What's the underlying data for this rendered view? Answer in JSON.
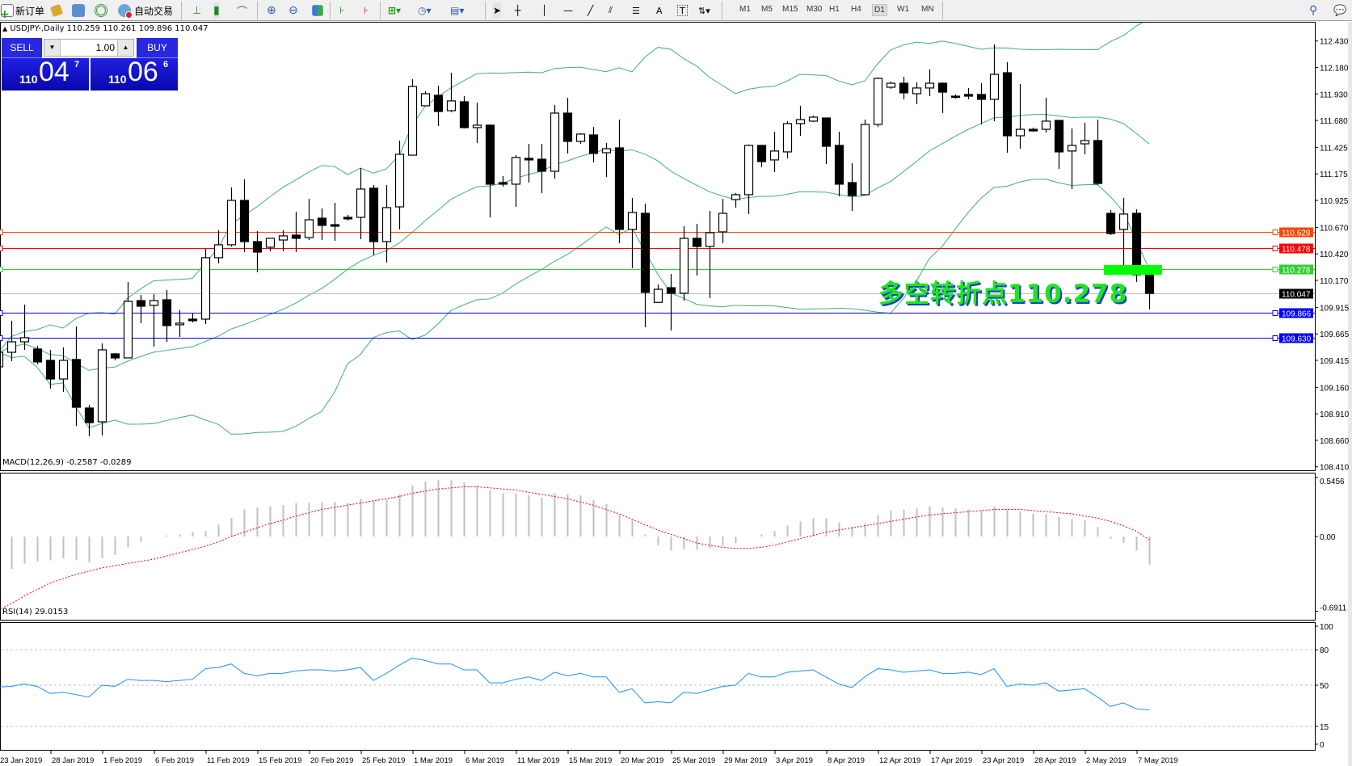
{
  "toolbar": {
    "new_order": "新订单",
    "auto_trading": "自动交易",
    "timeframes": [
      "M1",
      "M5",
      "M15",
      "M30",
      "H1",
      "H4",
      "D1",
      "W1",
      "MN"
    ],
    "active_timeframe": "D1"
  },
  "chart_header": "USDJPY-,Daily  110.259 110.261 109.896 110.047",
  "trade_panel": {
    "sell_label": "SELL",
    "buy_label": "BUY",
    "lot": "1.00",
    "sell_big": "110",
    "sell_pips": "04",
    "sell_frac": "7",
    "buy_big": "110",
    "buy_pips": "06",
    "buy_frac": "6",
    "panel_color": "#1a1ad8"
  },
  "annotation": "多空转折点110.278",
  "price_axis": [
    "112.430",
    "112.180",
    "111.930",
    "111.680",
    "111.425",
    "111.175",
    "110.925",
    "110.670",
    "110.420",
    "110.170",
    "109.915",
    "109.665",
    "109.415",
    "109.160",
    "108.910",
    "108.660",
    "108.410"
  ],
  "levels": [
    {
      "price": 110.629,
      "label": "110.629",
      "color": "#ff4500"
    },
    {
      "price": 110.478,
      "label": "110.478",
      "color": "#ff0000"
    },
    {
      "price": 110.278,
      "label": "110.278",
      "color": "#32cd32"
    },
    {
      "price": 110.047,
      "label": "110.047",
      "color": "#c0c0c0",
      "label_bg": "#000000"
    },
    {
      "price": 109.866,
      "label": "109.866",
      "color": "#0000ff"
    },
    {
      "price": 109.63,
      "label": "109.630",
      "color": "#0000ff"
    }
  ],
  "macd": {
    "label": "MACD(12,26,9) -0.2587 -0.0289",
    "axis": [
      "0.5456",
      "0.00",
      "-0.6911"
    ]
  },
  "rsi": {
    "label": "RSI(14) 29.0153",
    "axis": [
      "100",
      "80",
      "50",
      "15",
      "0"
    ]
  },
  "dates": [
    "23 Jan 2019",
    "28 Jan 2019",
    "1 Feb 2019",
    "6 Feb 2019",
    "11 Feb 2019",
    "15 Feb 2019",
    "20 Feb 2019",
    "25 Feb 2019",
    "1 Mar 2019",
    "6 Mar 2019",
    "11 Mar 2019",
    "15 Mar 2019",
    "20 Mar 2019",
    "25 Mar 2019",
    "29 Mar 2019",
    "3 Apr 2019",
    "8 Apr 2019",
    "12 Apr 2019",
    "17 Apr 2019",
    "23 Apr 2019",
    "28 Apr 2019",
    "2 May 2019",
    "7 May 2019"
  ],
  "chart_data": {
    "type": "candlestick",
    "symbol": "USDJPY-",
    "timeframe": "Daily",
    "ylim": [
      108.41,
      112.43
    ],
    "bollinger_color": "#3cb371",
    "ohlc": [
      [
        109.354,
        109.537,
        109.308,
        109.491
      ],
      [
        109.491,
        109.789,
        109.407,
        109.59
      ],
      [
        109.59,
        109.941,
        109.514,
        109.629
      ],
      [
        109.522,
        109.552,
        109.377,
        109.4
      ],
      [
        109.415,
        109.514,
        109.148,
        109.239
      ],
      [
        109.239,
        109.537,
        109.117,
        109.415
      ],
      [
        109.423,
        109.735,
        108.797,
        108.972
      ],
      [
        108.965,
        108.995,
        108.698,
        108.827
      ],
      [
        108.835,
        109.575,
        108.706,
        109.514
      ],
      [
        109.476,
        109.484,
        109.415,
        109.438
      ],
      [
        109.438,
        110.155,
        109.438,
        109.972
      ],
      [
        109.979,
        110.033,
        109.766,
        109.926
      ],
      [
        109.934,
        110.04,
        109.545,
        109.979
      ],
      [
        109.987,
        110.079,
        109.59,
        109.743
      ],
      [
        109.751,
        109.888,
        109.636,
        109.766
      ],
      [
        109.804,
        109.857,
        109.773,
        109.789
      ],
      [
        109.804,
        110.468,
        109.758,
        110.384
      ],
      [
        110.384,
        110.643,
        110.33,
        110.506
      ],
      [
        110.506,
        111.047,
        110.49,
        110.925
      ],
      [
        110.925,
        111.124,
        110.437,
        110.536
      ],
      [
        110.536,
        110.635,
        110.246,
        110.437
      ],
      [
        110.483,
        110.567,
        110.445,
        110.567
      ],
      [
        110.551,
        110.643,
        110.445,
        110.59
      ],
      [
        110.597,
        110.818,
        110.437,
        110.567
      ],
      [
        110.574,
        110.94,
        110.551,
        110.742
      ],
      [
        110.757,
        110.849,
        110.551,
        110.689
      ],
      [
        110.696,
        110.902,
        110.544,
        110.681
      ],
      [
        110.765,
        110.788,
        110.735,
        110.75
      ],
      [
        110.765,
        111.23,
        110.559,
        111.032
      ],
      [
        111.04,
        111.07,
        110.407,
        110.536
      ],
      [
        110.536,
        111.07,
        110.338,
        110.857
      ],
      [
        110.864,
        111.49,
        110.651,
        111.36
      ],
      [
        111.352,
        112.069,
        111.352,
        112.001
      ],
      [
        111.818,
        111.955,
        111.818,
        111.932
      ],
      [
        111.917,
        112.008,
        111.627,
        111.764
      ],
      [
        111.772,
        112.13,
        111.757,
        111.864
      ],
      [
        111.856,
        111.909,
        111.604,
        111.612
      ],
      [
        111.612,
        111.848,
        111.467,
        111.635
      ],
      [
        111.635,
        111.642,
        110.765,
        111.078
      ],
      [
        111.093,
        111.154,
        111.055,
        111.078
      ],
      [
        111.078,
        111.352,
        110.864,
        111.33
      ],
      [
        111.322,
        111.459,
        111.093,
        111.307
      ],
      [
        111.314,
        111.459,
        110.994,
        111.2
      ],
      [
        111.2,
        111.825,
        111.131,
        111.749
      ],
      [
        111.749,
        111.894,
        111.368,
        111.482
      ],
      [
        111.482,
        111.558,
        111.459,
        111.551
      ],
      [
        111.543,
        111.619,
        111.284,
        111.368
      ],
      [
        111.375,
        111.467,
        111.146,
        111.413
      ],
      [
        111.421,
        111.688,
        110.521,
        110.651
      ],
      [
        110.651,
        110.948,
        110.284,
        110.811
      ],
      [
        110.803,
        110.895,
        109.728,
        110.056
      ],
      [
        109.962,
        110.132,
        109.962,
        110.086
      ],
      [
        110.101,
        110.231,
        109.697,
        110.048
      ],
      [
        110.048,
        110.681,
        109.979,
        110.567
      ],
      [
        110.567,
        110.704,
        110.216,
        110.49
      ],
      [
        110.49,
        110.826,
        110.002,
        110.62
      ],
      [
        110.628,
        110.94,
        110.521,
        110.803
      ],
      [
        110.933,
        110.994,
        110.857,
        110.979
      ],
      [
        110.979,
        111.452,
        110.796,
        111.444
      ],
      [
        111.444,
        111.444,
        111.238,
        111.291
      ],
      [
        111.307,
        111.574,
        111.192,
        111.391
      ],
      [
        111.383,
        111.673,
        111.322,
        111.65
      ],
      [
        111.65,
        111.818,
        111.535,
        111.688
      ],
      [
        111.673,
        111.726,
        111.665,
        111.711
      ],
      [
        111.703,
        111.703,
        111.268,
        111.436
      ],
      [
        111.444,
        111.574,
        110.963,
        111.078
      ],
      [
        111.093,
        111.276,
        110.826,
        110.971
      ],
      [
        110.979,
        111.688,
        110.979,
        111.642
      ],
      [
        111.642,
        112.085,
        111.619,
        112.077
      ],
      [
        111.993,
        112.047,
        111.978,
        112.031
      ],
      [
        112.031,
        112.092,
        111.879,
        111.94
      ],
      [
        111.932,
        112.039,
        111.833,
        111.986
      ],
      [
        111.986,
        112.161,
        111.909,
        112.031
      ],
      [
        112.031,
        112.039,
        111.749,
        111.947
      ],
      [
        111.909,
        111.925,
        111.886,
        111.902
      ],
      [
        111.925,
        111.986,
        111.879,
        111.909
      ],
      [
        111.925,
        112.031,
        111.642,
        111.879
      ],
      [
        111.879,
        112.397,
        111.673,
        112.115
      ],
      [
        112.13,
        112.23,
        111.375,
        111.535
      ],
      [
        111.535,
        112.024,
        111.413,
        111.596
      ],
      [
        111.596,
        111.612,
        111.574,
        111.581
      ],
      [
        111.596,
        111.894,
        111.566,
        111.673
      ],
      [
        111.68,
        111.68,
        111.223,
        111.383
      ],
      [
        111.391,
        111.604,
        111.032,
        111.444
      ],
      [
        111.459,
        111.658,
        111.36,
        111.49
      ],
      [
        111.49,
        111.688,
        111.07,
        111.085
      ],
      [
        110.803,
        110.834,
        110.597,
        110.612
      ],
      [
        110.651,
        110.948,
        110.3,
        110.796
      ],
      [
        110.803,
        110.841,
        110.155,
        110.223
      ],
      [
        110.259,
        110.261,
        109.896,
        110.047
      ]
    ],
    "macd_hist": [
      -0.32,
      -0.3,
      -0.25,
      -0.23,
      -0.22,
      -0.2,
      -0.22,
      -0.24,
      -0.2,
      -0.17,
      -0.1,
      -0.05,
      0.0,
      0.01,
      0.02,
      0.04,
      0.05,
      0.11,
      0.17,
      0.25,
      0.27,
      0.28,
      0.29,
      0.31,
      0.31,
      0.32,
      0.32,
      0.31,
      0.35,
      0.33,
      0.34,
      0.39,
      0.47,
      0.51,
      0.52,
      0.52,
      0.5,
      0.47,
      0.43,
      0.4,
      0.4,
      0.38,
      0.36,
      0.4,
      0.39,
      0.38,
      0.34,
      0.3,
      0.2,
      0.15,
      0.02,
      -0.08,
      -0.13,
      -0.12,
      -0.12,
      -0.11,
      -0.09,
      -0.06,
      0.0,
      0.02,
      0.05,
      0.1,
      0.14,
      0.17,
      0.17,
      0.13,
      0.09,
      0.12,
      0.2,
      0.24,
      0.25,
      0.26,
      0.28,
      0.27,
      0.26,
      0.25,
      0.24,
      0.28,
      0.25,
      0.23,
      0.21,
      0.21,
      0.18,
      0.16,
      0.15,
      0.09,
      -0.02,
      -0.06,
      -0.13,
      -0.2587
    ],
    "macd_signal": [
      -0.68,
      -0.62,
      -0.55,
      -0.49,
      -0.43,
      -0.39,
      -0.35,
      -0.32,
      -0.29,
      -0.27,
      -0.25,
      -0.23,
      -0.21,
      -0.18,
      -0.15,
      -0.12,
      -0.09,
      -0.05,
      0.0,
      0.04,
      0.08,
      0.12,
      0.15,
      0.19,
      0.22,
      0.25,
      0.27,
      0.29,
      0.31,
      0.33,
      0.35,
      0.37,
      0.4,
      0.42,
      0.44,
      0.45,
      0.46,
      0.46,
      0.45,
      0.44,
      0.43,
      0.41,
      0.39,
      0.37,
      0.35,
      0.32,
      0.29,
      0.25,
      0.21,
      0.16,
      0.11,
      0.06,
      0.02,
      -0.02,
      -0.06,
      -0.08,
      -0.1,
      -0.11,
      -0.11,
      -0.1,
      -0.08,
      -0.05,
      -0.02,
      0.01,
      0.04,
      0.06,
      0.08,
      0.1,
      0.12,
      0.14,
      0.16,
      0.18,
      0.2,
      0.21,
      0.22,
      0.23,
      0.24,
      0.25,
      0.25,
      0.25,
      0.24,
      0.23,
      0.22,
      0.21,
      0.19,
      0.17,
      0.14,
      0.1,
      0.05,
      -0.0289
    ],
    "rsi": [
      48.5,
      49,
      51,
      49,
      43,
      44,
      42,
      40,
      50,
      49,
      55,
      54,
      54,
      53,
      54,
      55,
      64,
      65,
      68,
      60,
      58,
      60,
      60,
      62,
      63,
      63,
      62,
      63,
      65,
      54,
      60,
      67,
      73,
      71,
      68,
      68,
      63,
      63,
      52,
      52,
      55,
      57,
      54,
      61,
      58,
      60,
      57,
      57,
      44,
      47,
      35,
      36,
      35,
      44,
      43,
      46,
      49,
      50,
      60,
      57,
      57,
      61,
      62,
      63,
      57,
      51,
      48,
      57,
      64,
      63,
      61,
      62,
      63,
      60,
      60,
      61,
      59,
      64,
      49,
      51,
      50,
      52,
      45,
      46,
      47,
      40,
      32,
      35,
      30,
      29.0153
    ]
  }
}
